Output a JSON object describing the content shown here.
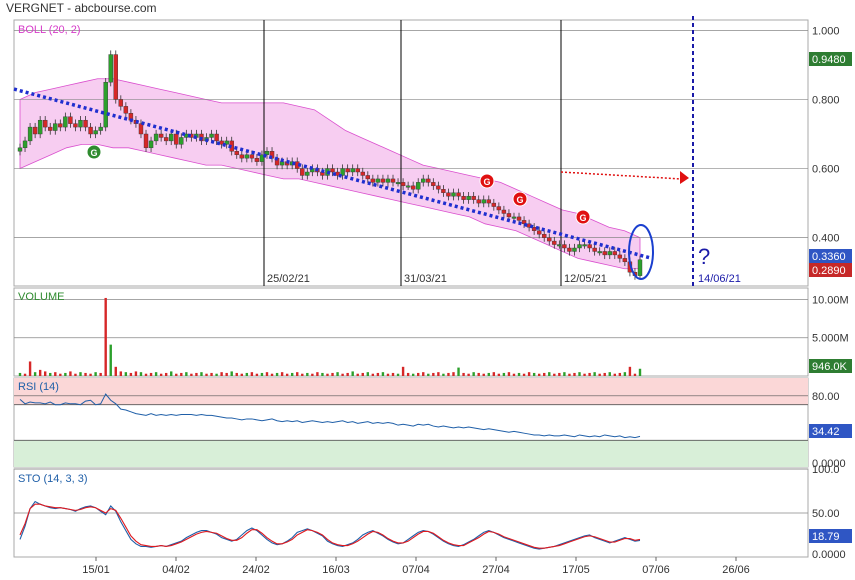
{
  "header": {
    "title": "VERGNET - abcbourse.com"
  },
  "colors": {
    "up": "#2ca02c",
    "down": "#d62728",
    "bollinger_fill": "#f7c8f0",
    "bollinger_line": "#d63cc9",
    "trend": "#1f2fcf",
    "rsi_line": "#1f5fa8",
    "sto_k": "#1f5fa8",
    "sto_d": "#e0191e",
    "rsi_over": "#fbd7d7",
    "rsi_under": "#d8efd8"
  },
  "chart_data": [
    {
      "type": "candlestick",
      "label": "BOLL (20, 2)",
      "x_ticks": [
        "15/01",
        "04/02",
        "24/02",
        "16/03",
        "07/04",
        "27/04",
        "17/05",
        "07/06",
        "26/06"
      ],
      "ylim": [
        0.26,
        1.03
      ],
      "y_ticks": [
        "1.000",
        "0.800",
        "0.600",
        "0.400"
      ],
      "price_badges": [
        {
          "value": "0.9480",
          "color": "#2e7d32"
        },
        {
          "value": "0.3360",
          "color": "#2f56c4"
        },
        {
          "value": "0.2890",
          "color": "#c62828"
        }
      ],
      "vertical_markers": [
        "25/02/21",
        "31/03/21",
        "12/05/21"
      ],
      "future_marker": {
        "label": "14/06/21",
        "symbol": "?"
      },
      "signal_badges": [
        "G",
        "G",
        "G",
        "G"
      ],
      "closes": [
        0.66,
        0.68,
        0.72,
        0.7,
        0.74,
        0.72,
        0.71,
        0.73,
        0.72,
        0.75,
        0.73,
        0.72,
        0.74,
        0.72,
        0.7,
        0.71,
        0.72,
        0.85,
        0.93,
        0.8,
        0.78,
        0.76,
        0.74,
        0.73,
        0.7,
        0.66,
        0.68,
        0.7,
        0.69,
        0.68,
        0.7,
        0.67,
        0.69,
        0.7,
        0.69,
        0.7,
        0.68,
        0.69,
        0.7,
        0.68,
        0.67,
        0.68,
        0.65,
        0.64,
        0.63,
        0.64,
        0.63,
        0.62,
        0.64,
        0.65,
        0.63,
        0.61,
        0.62,
        0.61,
        0.62,
        0.6,
        0.58,
        0.59,
        0.6,
        0.59,
        0.58,
        0.6,
        0.59,
        0.58,
        0.6,
        0.59,
        0.6,
        0.59,
        0.58,
        0.57,
        0.56,
        0.57,
        0.56,
        0.57,
        0.56,
        0.56,
        0.55,
        0.55,
        0.54,
        0.56,
        0.57,
        0.56,
        0.55,
        0.54,
        0.53,
        0.52,
        0.53,
        0.52,
        0.51,
        0.52,
        0.51,
        0.5,
        0.51,
        0.5,
        0.49,
        0.48,
        0.47,
        0.46,
        0.46,
        0.45,
        0.44,
        0.43,
        0.42,
        0.41,
        0.4,
        0.39,
        0.38,
        0.38,
        0.37,
        0.36,
        0.37,
        0.38,
        0.38,
        0.37,
        0.36,
        0.36,
        0.35,
        0.36,
        0.35,
        0.34,
        0.33,
        0.3,
        0.29,
        0.336
      ],
      "bollinger_upper": [
        0.8,
        0.82,
        0.83,
        0.84,
        0.85,
        0.86,
        0.86,
        0.85,
        0.84,
        0.83,
        0.82,
        0.81,
        0.8,
        0.79,
        0.79,
        0.79,
        0.79,
        0.79,
        0.78,
        0.77,
        0.74,
        0.71,
        0.69,
        0.67,
        0.65,
        0.63,
        0.61,
        0.6,
        0.59,
        0.58,
        0.57,
        0.56,
        0.54,
        0.52,
        0.5,
        0.48,
        0.47,
        0.45,
        0.43,
        0.42,
        0.4
      ],
      "bollinger_lower": [
        0.6,
        0.62,
        0.64,
        0.66,
        0.67,
        0.67,
        0.66,
        0.66,
        0.65,
        0.64,
        0.63,
        0.62,
        0.61,
        0.61,
        0.6,
        0.59,
        0.58,
        0.57,
        0.57,
        0.56,
        0.55,
        0.54,
        0.53,
        0.52,
        0.51,
        0.5,
        0.49,
        0.48,
        0.47,
        0.46,
        0.44,
        0.43,
        0.42,
        0.4,
        0.38,
        0.36,
        0.34,
        0.33,
        0.32,
        0.31,
        0.31
      ],
      "trend_line": {
        "from": 0.83,
        "to": 0.34
      },
      "projection_target": 0.59
    },
    {
      "type": "bar",
      "label": "VOLUME",
      "y_ticks": [
        "10.00M",
        "5.000M"
      ],
      "ylim": [
        0,
        11.5
      ],
      "last_value": "946.0K",
      "values": [
        0.4,
        0.3,
        1.9,
        0.5,
        0.8,
        0.6,
        0.4,
        0.5,
        0.3,
        0.4,
        0.6,
        0.3,
        0.5,
        0.4,
        0.3,
        0.5,
        0.4,
        10.2,
        4.1,
        1.2,
        0.6,
        0.5,
        0.4,
        0.6,
        0.5,
        0.3,
        0.4,
        0.5,
        0.3,
        0.4,
        0.6,
        0.3,
        0.4,
        0.5,
        0.3,
        0.4,
        0.5,
        0.3,
        0.4,
        0.3,
        0.5,
        0.4,
        0.6,
        0.4,
        0.3,
        0.4,
        0.5,
        0.3,
        0.4,
        0.5,
        0.3,
        0.4,
        0.5,
        0.3,
        0.4,
        0.5,
        0.3,
        0.4,
        0.3,
        0.5,
        0.4,
        0.3,
        0.4,
        0.5,
        0.3,
        0.4,
        0.6,
        0.3,
        0.4,
        0.5,
        0.3,
        0.4,
        0.5,
        0.3,
        0.4,
        0.3,
        1.2,
        0.4,
        0.3,
        0.4,
        0.5,
        0.3,
        0.4,
        0.5,
        0.3,
        0.4,
        0.5,
        1.1,
        0.4,
        0.3,
        0.5,
        0.4,
        0.3,
        0.4,
        0.5,
        0.3,
        0.4,
        0.5,
        0.3,
        0.4,
        0.3,
        0.5,
        0.4,
        0.3,
        0.4,
        0.5,
        0.3,
        0.4,
        0.5,
        0.3,
        0.4,
        0.5,
        0.3,
        0.4,
        0.5,
        0.3,
        0.4,
        0.5,
        0.3,
        0.4,
        0.5,
        1.2,
        0.3,
        0.946
      ]
    },
    {
      "type": "line",
      "label": "RSI (14)",
      "ylim": [
        0,
        100
      ],
      "y_ticks": [
        "80.00",
        "0.0000"
      ],
      "bands": {
        "overbought": 70,
        "oversold": 30
      },
      "last_value": "34.42",
      "values": [
        76,
        71,
        73,
        72,
        72,
        71,
        73,
        70,
        70,
        72,
        71,
        71,
        70,
        74,
        75,
        70,
        71,
        82,
        75,
        71,
        65,
        64,
        62,
        60,
        59,
        58,
        60,
        58,
        59,
        58,
        59,
        58,
        59,
        59,
        59,
        58,
        59,
        58,
        58,
        57,
        56,
        55,
        55,
        54,
        53,
        54,
        54,
        53,
        52,
        53,
        54,
        52,
        51,
        52,
        51,
        52,
        50,
        51,
        52,
        51,
        50,
        51,
        50,
        51,
        52,
        50,
        51,
        49,
        50,
        51,
        49,
        50,
        49,
        50,
        49,
        47,
        48,
        47,
        46,
        48,
        47,
        48,
        46,
        45,
        46,
        45,
        44,
        45,
        44,
        45,
        44,
        43,
        42,
        43,
        42,
        41,
        40,
        39,
        40,
        39,
        38,
        37,
        36,
        36,
        35,
        36,
        35,
        35,
        36,
        35,
        34,
        36,
        35,
        34,
        35,
        34,
        36,
        35,
        34,
        35,
        33,
        34,
        33,
        34.42
      ]
    },
    {
      "type": "line",
      "label": "STO (14, 3, 3)",
      "ylim": [
        0,
        100
      ],
      "y_ticks": [
        "100.0",
        "50.00",
        "0.0000"
      ],
      "last_value": "18.79",
      "series": [
        {
          "name": "K",
          "values": [
            20,
            35,
            55,
            63,
            60,
            58,
            56,
            55,
            56,
            55,
            54,
            52,
            55,
            57,
            58,
            56,
            52,
            48,
            58,
            52,
            40,
            30,
            20,
            15,
            12,
            12,
            11,
            12,
            13,
            12,
            14,
            16,
            18,
            22,
            25,
            28,
            30,
            30,
            28,
            26,
            22,
            20,
            18,
            20,
            25,
            30,
            33,
            30,
            25,
            20,
            16,
            14,
            15,
            18,
            22,
            28,
            30,
            32,
            30,
            27,
            24,
            18,
            15,
            13,
            12,
            14,
            16,
            20,
            25,
            28,
            30,
            27,
            24,
            20,
            17,
            15,
            16,
            20,
            24,
            28,
            30,
            29,
            26,
            22,
            18,
            15,
            13,
            12,
            14,
            17,
            20,
            24,
            28,
            30,
            28,
            25,
            22,
            20,
            18,
            16,
            14,
            12,
            10,
            9,
            10,
            11,
            12,
            14,
            16,
            18,
            20,
            22,
            24,
            25,
            22,
            20,
            18,
            16,
            18,
            20,
            22,
            20,
            18,
            18.79
          ]
        },
        {
          "name": "D",
          "values": [
            25,
            38,
            55,
            60,
            60,
            58,
            57,
            56,
            56,
            55,
            54,
            53,
            54,
            56,
            57,
            56,
            53,
            50,
            55,
            53,
            44,
            34,
            24,
            18,
            14,
            13,
            12,
            12,
            13,
            12,
            13,
            15,
            17,
            20,
            23,
            26,
            28,
            29,
            28,
            27,
            24,
            21,
            19,
            19,
            22,
            27,
            31,
            31,
            27,
            22,
            18,
            15,
            15,
            17,
            20,
            25,
            28,
            31,
            30,
            28,
            25,
            20,
            16,
            14,
            13,
            13,
            15,
            18,
            22,
            26,
            29,
            28,
            25,
            21,
            18,
            16,
            16,
            18,
            22,
            26,
            29,
            29,
            27,
            23,
            19,
            16,
            14,
            13,
            13,
            16,
            19,
            22,
            26,
            29,
            28,
            26,
            23,
            21,
            19,
            17,
            15,
            13,
            11,
            10,
            10,
            11,
            12,
            13,
            15,
            17,
            19,
            21,
            23,
            24,
            23,
            21,
            19,
            17,
            17,
            19,
            21,
            21,
            19,
            20
          ]
        }
      ]
    }
  ]
}
